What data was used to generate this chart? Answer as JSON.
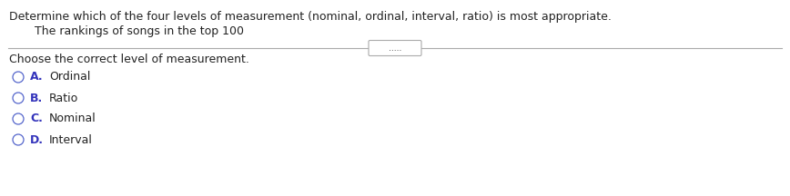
{
  "title_line": "Determine which of the four levels of measurement (nominal, ordinal, interval, ratio) is most appropriate.",
  "sub_question": "The rankings of songs in the top 100",
  "divider_label": ".....",
  "section_header": "Choose the correct level of measurement.",
  "options": [
    {
      "letter": "A.",
      "text": "Ordinal"
    },
    {
      "letter": "B.",
      "text": "Ratio"
    },
    {
      "letter": "C.",
      "text": "Nominal"
    },
    {
      "letter": "D.",
      "text": "Interval"
    }
  ],
  "bg_color": "#ffffff",
  "text_color_dark": "#222222",
  "text_color_blue": "#3333bb",
  "circle_edge_color": "#5566cc",
  "divider_color": "#aaaaaa",
  "title_fontsize": 9.0,
  "sub_fontsize": 9.0,
  "header_fontsize": 9.0,
  "option_fontsize": 9.0,
  "fig_width": 8.68,
  "fig_height": 2.16,
  "dpi": 100
}
